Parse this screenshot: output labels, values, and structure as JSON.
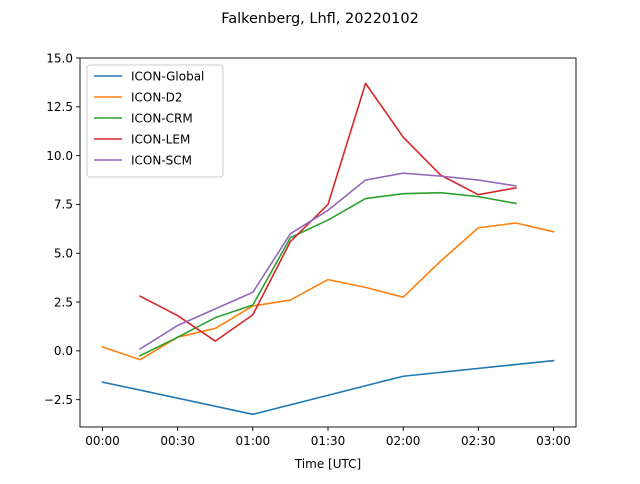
{
  "chart_data": {
    "type": "line",
    "title": "Falkenberg, Lhfl, 20220102",
    "xlabel": "Time [UTC]",
    "ylabel": "",
    "xlim": [
      -0.15,
      3.15
    ],
    "ylim": [
      -3.9,
      15.0
    ],
    "x_ticks": [
      {
        "value": 0.0,
        "label": "00:00"
      },
      {
        "value": 0.5,
        "label": "00:30"
      },
      {
        "value": 1.0,
        "label": "01:00"
      },
      {
        "value": 1.5,
        "label": "01:30"
      },
      {
        "value": 2.0,
        "label": "02:00"
      },
      {
        "value": 2.5,
        "label": "02:30"
      },
      {
        "value": 3.0,
        "label": "03:00"
      }
    ],
    "y_ticks": [
      {
        "value": -2.5,
        "label": "−2.5"
      },
      {
        "value": 0.0,
        "label": "0.0"
      },
      {
        "value": 2.5,
        "label": "2.5"
      },
      {
        "value": 5.0,
        "label": "5.0"
      },
      {
        "value": 7.5,
        "label": "7.5"
      },
      {
        "value": 10.0,
        "label": "10.0"
      },
      {
        "value": 12.5,
        "label": "12.5"
      },
      {
        "value": 15.0,
        "label": "15.0"
      }
    ],
    "grid": false,
    "legend_position": "top-left",
    "series": [
      {
        "name": "ICON-Global",
        "color": "#1f77b4",
        "x": [
          0.0,
          1.0,
          2.0,
          3.0
        ],
        "y": [
          -1.6,
          -3.25,
          -1.3,
          -0.5
        ]
      },
      {
        "name": "ICON-D2",
        "color": "#ff7f0e",
        "x": [
          0.0,
          0.25,
          0.5,
          0.75,
          1.0,
          1.25,
          1.5,
          1.75,
          2.0,
          2.25,
          2.5,
          2.75,
          3.0
        ],
        "y": [
          0.2,
          -0.45,
          0.7,
          1.15,
          2.3,
          2.6,
          3.65,
          3.25,
          2.75,
          4.6,
          6.3,
          6.55,
          6.1
        ]
      },
      {
        "name": "ICON-CRM",
        "color": "#2ca02c",
        "x": [
          0.25,
          0.5,
          0.75,
          1.0,
          1.25,
          1.5,
          1.75,
          2.0,
          2.25,
          2.5,
          2.75
        ],
        "y": [
          -0.25,
          0.7,
          1.7,
          2.35,
          5.8,
          6.7,
          7.8,
          8.05,
          8.1,
          7.9,
          7.55
        ]
      },
      {
        "name": "ICON-LEM",
        "color": "#d62728",
        "x": [
          0.25,
          0.5,
          0.75,
          1.0,
          1.25,
          1.5,
          1.75,
          2.0,
          2.25,
          2.5,
          2.75
        ],
        "y": [
          2.8,
          1.8,
          0.5,
          1.85,
          5.6,
          7.5,
          13.7,
          10.95,
          9.0,
          8.0,
          8.35
        ]
      },
      {
        "name": "ICON-SCM",
        "color": "#9467bd",
        "x": [
          0.25,
          0.5,
          0.75,
          1.0,
          1.25,
          1.5,
          1.75,
          2.0,
          2.25,
          2.5,
          2.75
        ],
        "y": [
          0.1,
          1.3,
          2.15,
          3.0,
          6.0,
          7.2,
          8.75,
          9.1,
          8.95,
          8.75,
          8.45
        ]
      }
    ]
  }
}
